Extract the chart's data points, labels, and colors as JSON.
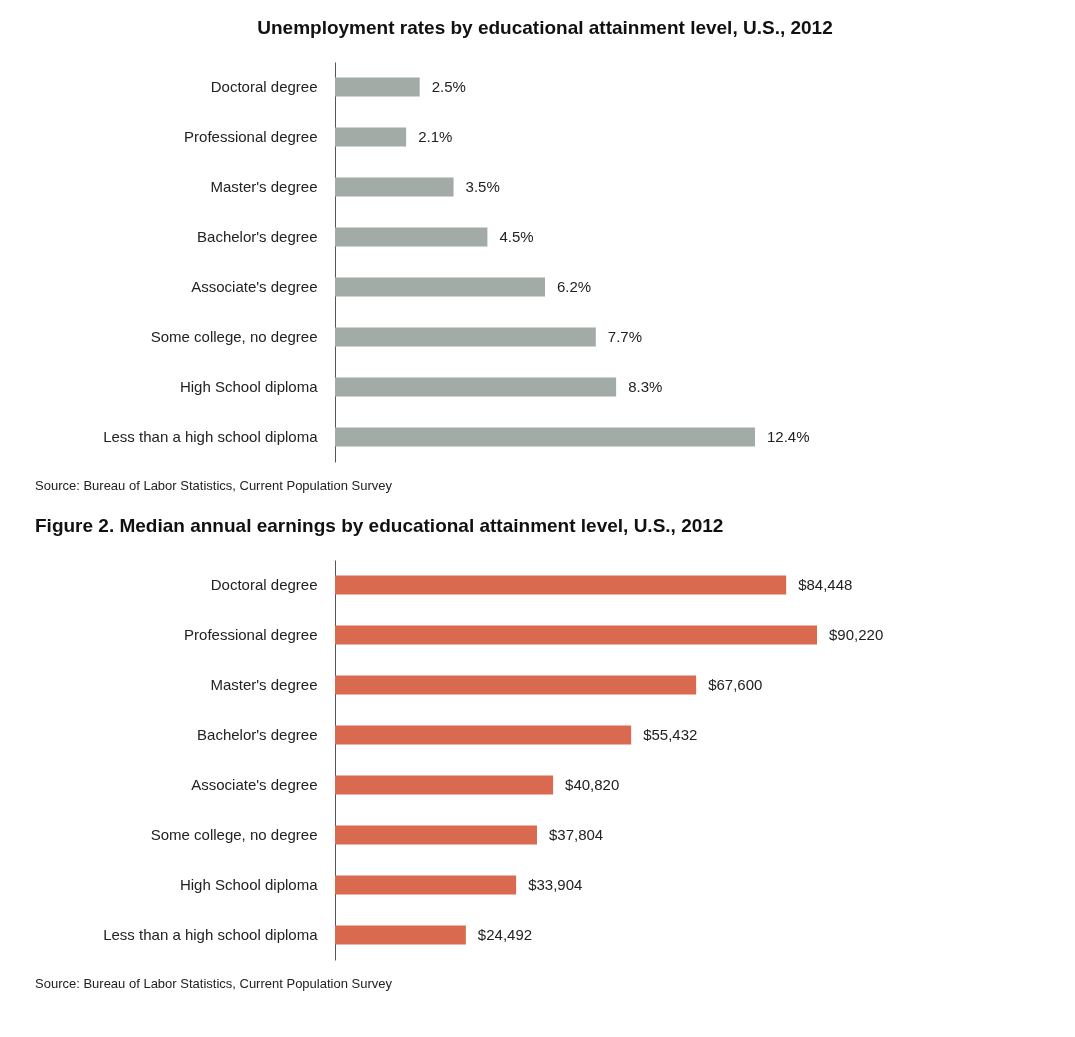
{
  "chart_data": [
    {
      "type": "bar",
      "orientation": "horizontal",
      "title": "Unemployment rates by educational attainment level, U.S., 2012",
      "categories": [
        "Doctoral degree",
        "Professional degree",
        "Master's degree",
        "Bachelor's degree",
        "Associate's degree",
        "Some college, no degree",
        "High School diploma",
        "Less than a high school diploma"
      ],
      "values": [
        2.5,
        2.1,
        3.5,
        4.5,
        6.2,
        7.7,
        8.3,
        12.4
      ],
      "value_labels": [
        "2.5%",
        "2.1%",
        "3.5%",
        "4.5%",
        "6.2%",
        "7.7%",
        "8.3%",
        "12.4%"
      ],
      "color": "#a3aba6",
      "annotations": [
        "Source: Bureau of Labor Statistics, Current Population Survey"
      ]
    },
    {
      "type": "bar",
      "orientation": "horizontal",
      "title": "Figure 2. Median annual earnings by educational attainment level, U.S., 2012",
      "categories": [
        "Doctoral degree",
        "Professional degree",
        "Master's degree",
        "Bachelor's degree",
        "Associate's degree",
        "Some college, no degree",
        "High School diploma",
        "Less than a high school diploma"
      ],
      "values": [
        84448,
        90220,
        67600,
        55432,
        40820,
        37804,
        33904,
        24492
      ],
      "value_labels": [
        "$84,448",
        "$90,220",
        "$67,600",
        "$55,432",
        "$40,820",
        "$37,804",
        "$33,904",
        "$24,492"
      ],
      "color": "#d9694f",
      "annotations": [
        "Source: Bureau of Labor Statistics, Current Population Survey"
      ]
    }
  ]
}
